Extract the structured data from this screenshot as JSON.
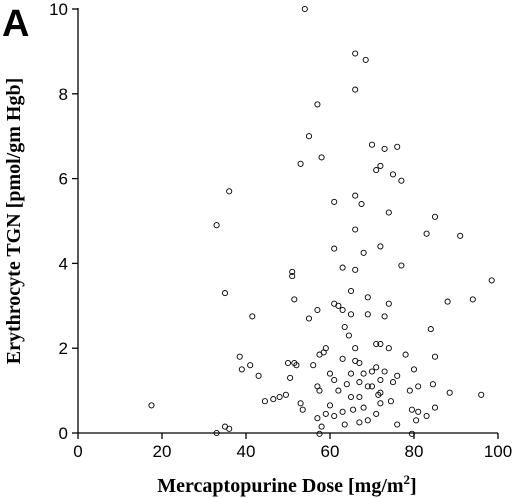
{
  "panel_label": "A",
  "chart_data": {
    "type": "scatter",
    "xlabel": "Mercaptopurine Dose [mg/m",
    "xlabel_superscript": "2",
    "xlabel_suffix": "]",
    "ylabel": "Erythrocyte TGN [pmol/gm Hgb]",
    "xlim": [
      0,
      100
    ],
    "ylim": [
      0,
      10
    ],
    "x_ticks": [
      0,
      20,
      40,
      60,
      80,
      100
    ],
    "y_ticks": [
      0,
      2,
      4,
      6,
      8,
      10
    ],
    "marker": "open-circle",
    "grid": false,
    "points": [
      [
        54,
        10.0
      ],
      [
        66,
        8.95
      ],
      [
        68.5,
        8.8
      ],
      [
        66,
        8.1
      ],
      [
        57,
        7.75
      ],
      [
        55,
        7.0
      ],
      [
        70,
        6.8
      ],
      [
        73,
        6.7
      ],
      [
        76,
        6.75
      ],
      [
        53,
        6.35
      ],
      [
        58,
        6.5
      ],
      [
        72,
        6.3
      ],
      [
        71,
        6.2
      ],
      [
        75,
        6.1
      ],
      [
        77,
        5.95
      ],
      [
        36,
        5.7
      ],
      [
        66,
        5.6
      ],
      [
        67.5,
        5.4
      ],
      [
        61,
        5.45
      ],
      [
        85,
        5.1
      ],
      [
        74,
        5.2
      ],
      [
        33,
        4.9
      ],
      [
        66,
        4.8
      ],
      [
        83,
        4.7
      ],
      [
        91,
        4.65
      ],
      [
        72,
        4.4
      ],
      [
        61,
        4.35
      ],
      [
        68,
        4.25
      ],
      [
        63,
        3.9
      ],
      [
        66,
        3.85
      ],
      [
        77,
        3.95
      ],
      [
        51,
        3.8
      ],
      [
        51,
        3.7
      ],
      [
        98.5,
        3.6
      ],
      [
        35,
        3.3
      ],
      [
        65,
        3.35
      ],
      [
        69,
        3.2
      ],
      [
        51.5,
        3.15
      ],
      [
        94,
        3.15
      ],
      [
        88,
        3.1
      ],
      [
        74,
        3.05
      ],
      [
        61,
        3.05
      ],
      [
        62,
        3.0
      ],
      [
        63,
        2.9
      ],
      [
        57,
        2.9
      ],
      [
        65,
        2.8
      ],
      [
        69,
        2.8
      ],
      [
        73,
        2.75
      ],
      [
        41.5,
        2.75
      ],
      [
        55,
        2.7
      ],
      [
        63.5,
        2.5
      ],
      [
        84,
        2.45
      ],
      [
        64.5,
        2.3
      ],
      [
        72,
        2.1
      ],
      [
        71,
        2.1
      ],
      [
        66,
        2.0
      ],
      [
        59,
        2.0
      ],
      [
        74,
        2.0
      ],
      [
        58.5,
        1.9
      ],
      [
        57.5,
        1.85
      ],
      [
        78,
        1.85
      ],
      [
        38.5,
        1.8
      ],
      [
        85,
        1.8
      ],
      [
        63,
        1.75
      ],
      [
        66,
        1.7
      ],
      [
        67,
        1.65
      ],
      [
        50,
        1.65
      ],
      [
        51.5,
        1.65
      ],
      [
        52,
        1.6
      ],
      [
        41,
        1.6
      ],
      [
        80,
        1.5
      ],
      [
        56,
        1.6
      ],
      [
        71,
        1.55
      ],
      [
        39,
        1.5
      ],
      [
        70,
        1.45
      ],
      [
        73,
        1.45
      ],
      [
        60,
        1.4
      ],
      [
        68,
        1.4
      ],
      [
        65,
        1.4
      ],
      [
        76,
        1.35
      ],
      [
        43,
        1.35
      ],
      [
        72,
        1.25
      ],
      [
        61,
        1.25
      ],
      [
        67,
        1.2
      ],
      [
        50.5,
        1.3
      ],
      [
        75,
        1.2
      ],
      [
        64,
        1.15
      ],
      [
        70,
        1.1
      ],
      [
        57,
        1.1
      ],
      [
        69,
        1.1
      ],
      [
        81,
        1.1
      ],
      [
        84.5,
        1.15
      ],
      [
        62,
        1.0
      ],
      [
        57.5,
        1.0
      ],
      [
        72,
        0.95
      ],
      [
        79,
        1.0
      ],
      [
        88.5,
        0.95
      ],
      [
        96,
        0.9
      ],
      [
        71.5,
        0.9
      ],
      [
        67,
        0.85
      ],
      [
        65,
        0.85
      ],
      [
        48,
        0.85
      ],
      [
        46.5,
        0.8
      ],
      [
        49.5,
        0.9
      ],
      [
        44.5,
        0.75
      ],
      [
        53,
        0.7
      ],
      [
        74.5,
        0.75
      ],
      [
        72,
        0.7
      ],
      [
        85,
        0.6
      ],
      [
        60,
        0.65
      ],
      [
        63,
        0.5
      ],
      [
        81,
        0.5
      ],
      [
        59,
        0.45
      ],
      [
        53.5,
        0.55
      ],
      [
        79.5,
        0.55
      ],
      [
        71,
        0.45
      ],
      [
        61,
        0.4
      ],
      [
        80.5,
        0.3
      ],
      [
        69,
        0.3
      ],
      [
        83,
        0.4
      ],
      [
        67,
        0.25
      ],
      [
        63.5,
        0.2
      ],
      [
        76,
        0.2
      ],
      [
        57,
        0.35
      ],
      [
        58,
        0.15
      ],
      [
        36,
        0.1
      ],
      [
        17.5,
        0.65
      ],
      [
        33,
        0.0
      ],
      [
        57.5,
        -0.02
      ],
      [
        79.5,
        -0.02
      ],
      [
        35,
        0.15
      ],
      [
        65.5,
        0.55
      ],
      [
        68,
        0.6
      ]
    ]
  }
}
